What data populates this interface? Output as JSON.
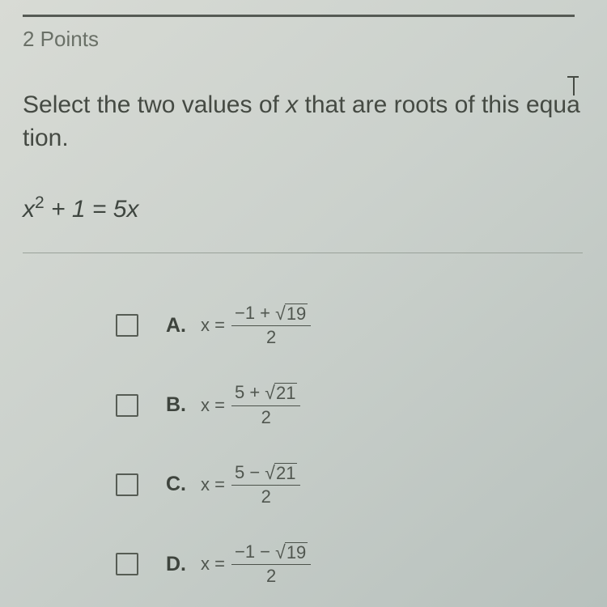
{
  "points_label": "2 Points",
  "prompt": {
    "text_before_x": "Select the two values of ",
    "variable": "x",
    "text_middle": " that are roots of this equ",
    "cursor_char": "a",
    "text_after": "tion."
  },
  "equation": {
    "lhs_var": "x",
    "lhs_exp": "2",
    "lhs_tail": " + 1 = 5",
    "rhs_var": "x"
  },
  "options": [
    {
      "letter": "A.",
      "num_lead": "−1 + ",
      "radicand": "19",
      "den": "2"
    },
    {
      "letter": "B.",
      "num_lead": "5 + ",
      "radicand": "21",
      "den": "2"
    },
    {
      "letter": "C.",
      "num_lead": "5 − ",
      "radicand": "21",
      "den": "2"
    },
    {
      "letter": "D.",
      "num_lead": "−1 − ",
      "radicand": "19",
      "den": "2"
    }
  ],
  "xeq_label": "x =",
  "radical_glyph": "√"
}
